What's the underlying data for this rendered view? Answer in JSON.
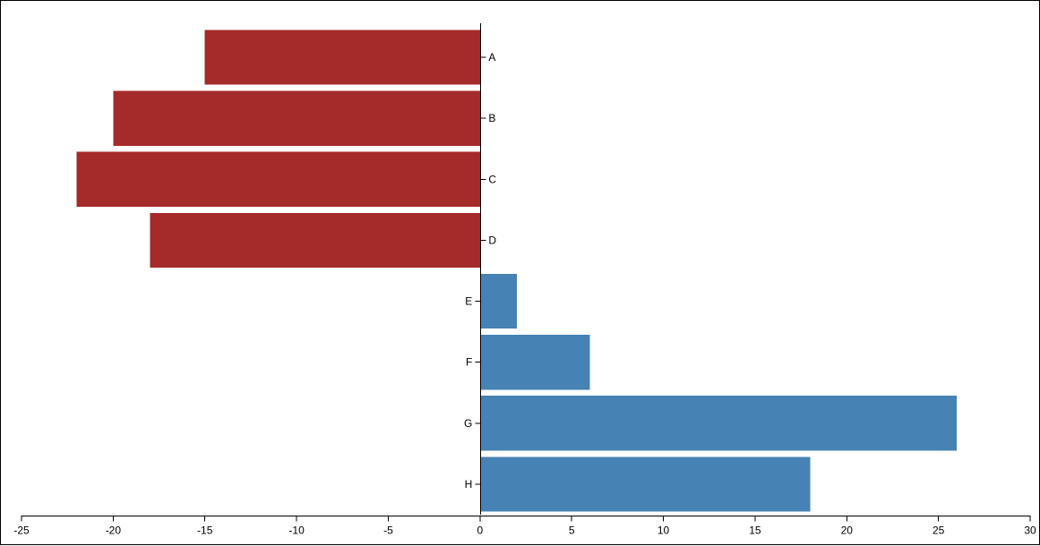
{
  "chart_data": {
    "type": "bar",
    "orientation": "horizontal",
    "categories": [
      "A",
      "B",
      "C",
      "D",
      "E",
      "F",
      "G",
      "H"
    ],
    "values": [
      -15,
      -20,
      -22,
      -18,
      2,
      6,
      26,
      18
    ],
    "title": "",
    "xlabel": "",
    "ylabel": "",
    "xlim": [
      -25,
      30
    ],
    "x_ticks": [
      -25,
      -20,
      -15,
      -10,
      -5,
      0,
      5,
      10,
      15,
      20,
      25,
      30
    ],
    "grid": false,
    "legend": "none",
    "colors": {
      "negative": "#a52a2a",
      "positive": "#4682b4"
    }
  }
}
